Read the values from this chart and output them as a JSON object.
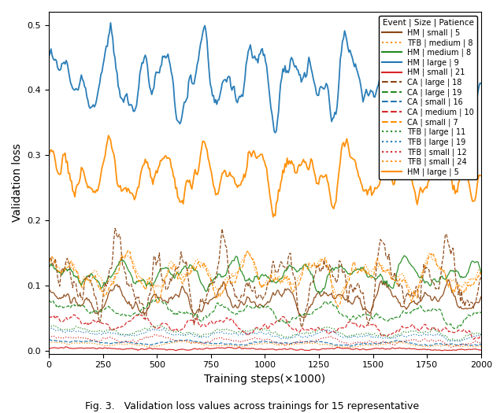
{
  "title": "",
  "xlabel": "Training steps(×1000)",
  "ylabel": "Validation loss",
  "xlim": [
    0,
    2000
  ],
  "ylim": [
    -0.005,
    0.52
  ],
  "caption": "Fig. 3.   Validation loss values across trainings for 15 representative",
  "legend_title": "Event | Size | Patience",
  "series": [
    {
      "label": "HM | small | 5",
      "color": "#8B4513",
      "linestyle": "solid",
      "base": 0.075,
      "amp": 0.012,
      "freq": 8.0,
      "trend": 0.005,
      "noise": 0.006,
      "seed": 10
    },
    {
      "label": "TFB | medium | 8",
      "color": "#FF8C00",
      "linestyle": "dotted",
      "base": 0.12,
      "amp": 0.015,
      "freq": 7.0,
      "trend": -0.005,
      "noise": 0.006,
      "seed": 20
    },
    {
      "label": "HM | medium | 8",
      "color": "#228B22",
      "linestyle": "solid",
      "base": 0.115,
      "amp": 0.012,
      "freq": 7.5,
      "trend": 0.003,
      "noise": 0.005,
      "seed": 30
    },
    {
      "label": "HM | large | 9",
      "color": "#1f77b4",
      "linestyle": "solid",
      "base": 0.415,
      "amp": 0.035,
      "freq": 9.0,
      "trend": 0.005,
      "noise": 0.012,
      "seed": 40
    },
    {
      "label": "HM | small | 21",
      "color": "#d62728",
      "linestyle": "solid",
      "base": 0.003,
      "amp": 0.001,
      "freq": 3.0,
      "trend": -0.001,
      "noise": 0.001,
      "seed": 50
    },
    {
      "label": "CA | large | 18",
      "color": "#8B4513",
      "linestyle": "dashed",
      "base": 0.105,
      "amp": 0.03,
      "freq": 8.0,
      "trend": 0.002,
      "noise": 0.015,
      "seed": 60
    },
    {
      "label": "CA | large | 19",
      "color": "#228B22",
      "linestyle": "dashed",
      "base": 0.065,
      "amp": 0.008,
      "freq": 5.0,
      "trend": -0.012,
      "noise": 0.004,
      "seed": 70
    },
    {
      "label": "CA | small | 16",
      "color": "#1f77b4",
      "linestyle": "dashed",
      "base": 0.013,
      "amp": 0.002,
      "freq": 4.0,
      "trend": -0.003,
      "noise": 0.001,
      "seed": 80
    },
    {
      "label": "CA | medium | 10",
      "color": "#d62728",
      "linestyle": "dashed",
      "base": 0.045,
      "amp": 0.006,
      "freq": 6.0,
      "trend": -0.015,
      "noise": 0.004,
      "seed": 90
    },
    {
      "label": "CA | small | 7",
      "color": "#FF8C00",
      "linestyle": "dashed",
      "base": 0.115,
      "amp": 0.018,
      "freq": 7.0,
      "trend": -0.004,
      "noise": 0.008,
      "seed": 100
    },
    {
      "label": "TFB | large | 11",
      "color": "#228B22",
      "linestyle": "dotted",
      "base": 0.032,
      "amp": 0.004,
      "freq": 5.0,
      "trend": -0.008,
      "noise": 0.002,
      "seed": 110
    },
    {
      "label": "TFB | large | 19",
      "color": "#1f77b4",
      "linestyle": "dotted",
      "base": 0.028,
      "amp": 0.003,
      "freq": 5.0,
      "trend": -0.008,
      "noise": 0.002,
      "seed": 120
    },
    {
      "label": "TFB | small | 12",
      "color": "#d62728",
      "linestyle": "dotted",
      "base": 0.018,
      "amp": 0.003,
      "freq": 5.0,
      "trend": -0.006,
      "noise": 0.002,
      "seed": 130
    },
    {
      "label": "TFB | small | 24",
      "color": "#FF8C00",
      "linestyle": "dotted",
      "base": 0.01,
      "amp": 0.002,
      "freq": 4.0,
      "trend": -0.002,
      "noise": 0.001,
      "seed": 140
    },
    {
      "label": "HM | large | 5",
      "color": "#FF8C00",
      "linestyle": "solid",
      "base": 0.27,
      "amp": 0.025,
      "freq": 9.0,
      "trend": 0.002,
      "noise": 0.01,
      "seed": 150
    }
  ]
}
